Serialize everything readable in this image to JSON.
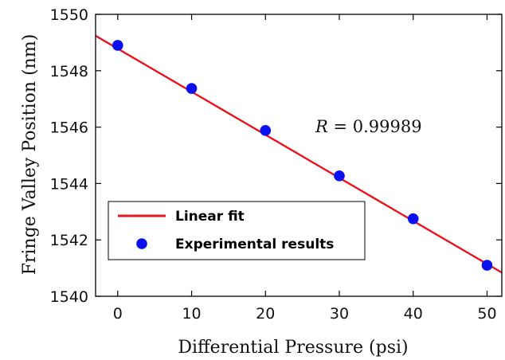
{
  "chart_data": {
    "type": "scatter",
    "title": "",
    "xlabel": "Differential Pressure (psi)",
    "ylabel": "Fringe Valley Position (nm)",
    "xlim": [
      -3,
      52
    ],
    "ylim": [
      1540,
      1550
    ],
    "xticks": [
      0,
      10,
      20,
      30,
      40,
      50
    ],
    "yticks": [
      1540,
      1542,
      1544,
      1546,
      1548,
      1550
    ],
    "grid": false,
    "legend_position": "bottom-left",
    "annotation": {
      "prefix": "R",
      "text": " = 0.99989"
    },
    "series": [
      {
        "name": "Linear fit",
        "kind": "line",
        "color": "#e8141b",
        "x": [
          -3,
          52
        ],
        "y": [
          1549.24,
          1540.84
        ]
      },
      {
        "name": "Experimental results",
        "kind": "scatter",
        "color": "#0a10f0",
        "x": [
          0,
          10,
          20,
          30,
          40,
          50
        ],
        "y": [
          1548.9,
          1547.37,
          1545.88,
          1544.27,
          1542.75,
          1541.1
        ]
      }
    ]
  }
}
